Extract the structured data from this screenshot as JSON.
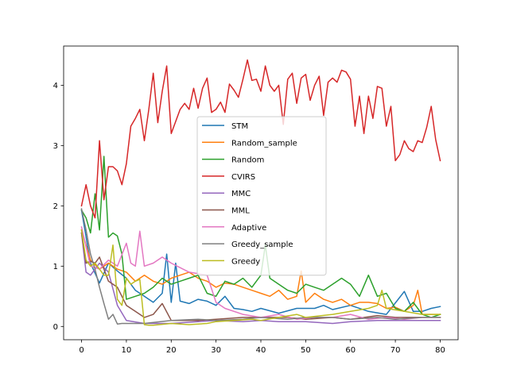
{
  "chart_data": {
    "type": "line",
    "title": "",
    "xlabel": "",
    "ylabel": "",
    "xlim": [
      -4,
      84
    ],
    "ylim": [
      -0.22,
      4.65
    ],
    "xticks": [
      0,
      10,
      20,
      30,
      40,
      50,
      60,
      70,
      80
    ],
    "yticks": [
      0,
      1,
      2,
      3,
      4
    ],
    "grid": false,
    "legend_position": "center",
    "series": [
      {
        "name": "STM",
        "color": "#1f77b4",
        "x": [
          0,
          2,
          4,
          6,
          8,
          10,
          12,
          14,
          16,
          18,
          19,
          20,
          21,
          22,
          24,
          26,
          28,
          30,
          32,
          34,
          36,
          38,
          40,
          44,
          48,
          52,
          54,
          56,
          60,
          64,
          68,
          72,
          74,
          76,
          78,
          80
        ],
        "y": [
          1.93,
          1.05,
          0.72,
          1.05,
          0.92,
          0.8,
          0.6,
          0.5,
          0.4,
          0.55,
          1.2,
          0.4,
          1.05,
          0.42,
          0.38,
          0.45,
          0.42,
          0.35,
          0.5,
          0.3,
          0.28,
          0.25,
          0.3,
          0.22,
          0.3,
          0.3,
          0.35,
          0.28,
          0.35,
          0.25,
          0.2,
          0.58,
          0.25,
          0.25,
          0.3,
          0.33
        ]
      },
      {
        "name": "Random_sample",
        "color": "#ff7f0e",
        "x": [
          0,
          2,
          4,
          6,
          8,
          10,
          12,
          14,
          16,
          18,
          20,
          22,
          24,
          26,
          28,
          30,
          32,
          34,
          36,
          38,
          40,
          42,
          44,
          46,
          48,
          49,
          50,
          52,
          54,
          56,
          58,
          60,
          62,
          64,
          66,
          68,
          70,
          72,
          74,
          75,
          76,
          78,
          80
        ],
        "y": [
          1.6,
          1.1,
          0.95,
          1.05,
          0.95,
          0.9,
          0.75,
          0.85,
          0.75,
          0.7,
          0.8,
          0.85,
          0.9,
          0.8,
          0.75,
          0.65,
          0.72,
          0.7,
          0.65,
          0.6,
          0.55,
          0.5,
          0.6,
          0.45,
          0.5,
          0.92,
          0.4,
          0.55,
          0.45,
          0.4,
          0.45,
          0.35,
          0.4,
          0.4,
          0.38,
          0.3,
          0.32,
          0.25,
          0.35,
          0.6,
          0.2,
          0.2,
          0.2
        ]
      },
      {
        "name": "Random",
        "color": "#2ca02c",
        "x": [
          0,
          1,
          2,
          3,
          4,
          5,
          6,
          7,
          8,
          9,
          10,
          12,
          14,
          16,
          18,
          20,
          22,
          24,
          26,
          28,
          30,
          32,
          34,
          36,
          38,
          40,
          41,
          42,
          44,
          46,
          48,
          50,
          52,
          54,
          56,
          58,
          60,
          62,
          64,
          66,
          68,
          70,
          72,
          74,
          76,
          78,
          80
        ],
        "y": [
          1.93,
          1.8,
          1.55,
          2.2,
          1.6,
          2.82,
          1.48,
          1.55,
          1.5,
          1.2,
          0.45,
          0.5,
          0.55,
          0.65,
          0.8,
          0.7,
          0.75,
          0.8,
          0.85,
          0.55,
          0.5,
          0.75,
          0.7,
          0.8,
          0.65,
          0.85,
          1.35,
          0.8,
          0.7,
          0.6,
          0.55,
          0.7,
          0.65,
          0.6,
          0.7,
          0.8,
          0.7,
          0.5,
          0.85,
          0.5,
          0.55,
          0.3,
          0.25,
          0.4,
          0.2,
          0.15,
          0.2
        ]
      },
      {
        "name": "CVIRS",
        "color": "#d62728",
        "x": [
          0,
          1,
          2,
          3,
          4,
          5,
          6,
          7,
          8,
          9,
          10,
          11,
          12,
          13,
          14,
          15,
          16,
          17,
          18,
          19,
          20,
          21,
          22,
          23,
          24,
          25,
          26,
          27,
          28,
          29,
          30,
          31,
          32,
          33,
          34,
          35,
          36,
          37,
          38,
          39,
          40,
          41,
          42,
          43,
          44,
          45,
          46,
          47,
          48,
          49,
          50,
          51,
          52,
          53,
          54,
          55,
          56,
          57,
          58,
          59,
          60,
          61,
          62,
          63,
          64,
          65,
          66,
          67,
          68,
          69,
          70,
          71,
          72,
          73,
          74,
          75,
          76,
          77,
          78,
          79,
          80
        ],
        "y": [
          2.0,
          2.35,
          2.0,
          1.8,
          3.08,
          2.1,
          2.65,
          2.65,
          2.58,
          2.35,
          2.7,
          3.32,
          3.45,
          3.6,
          3.08,
          3.6,
          4.2,
          3.38,
          3.9,
          4.32,
          3.2,
          3.4,
          3.6,
          3.7,
          3.6,
          3.95,
          3.62,
          3.95,
          4.12,
          3.55,
          3.6,
          3.72,
          3.55,
          4.02,
          3.92,
          3.8,
          4.1,
          4.42,
          4.08,
          4.1,
          3.9,
          4.32,
          4.0,
          3.9,
          4.0,
          3.35,
          4.1,
          4.2,
          3.7,
          4.12,
          4.18,
          3.75,
          4.0,
          4.15,
          3.5,
          4.05,
          4.12,
          4.05,
          4.25,
          4.22,
          4.1,
          3.32,
          3.82,
          3.2,
          3.82,
          3.45,
          3.98,
          3.95,
          3.32,
          3.65,
          2.75,
          2.85,
          3.08,
          2.95,
          2.9,
          3.08,
          3.05,
          3.3,
          3.65,
          3.1,
          2.75
        ]
      },
      {
        "name": "MMC",
        "color": "#9467bd",
        "x": [
          0,
          1,
          2,
          4,
          6,
          8,
          10,
          14,
          20,
          26,
          30,
          36,
          40,
          44,
          50,
          56,
          60,
          66,
          70,
          74,
          80
        ],
        "y": [
          1.55,
          0.9,
          0.85,
          1.05,
          0.9,
          0.35,
          0.1,
          0.05,
          0.05,
          0.08,
          0.1,
          0.08,
          0.1,
          0.08,
          0.08,
          0.05,
          0.08,
          0.1,
          0.1,
          0.1,
          0.1
        ]
      },
      {
        "name": "MML",
        "color": "#8c564b",
        "x": [
          0,
          1,
          2,
          3,
          4,
          5,
          6,
          8,
          10,
          12,
          14,
          16,
          18,
          20,
          26,
          30,
          36,
          40,
          46,
          50,
          56,
          60,
          66,
          70,
          76,
          80
        ],
        "y": [
          1.55,
          1.05,
          1.08,
          1.05,
          1.15,
          0.95,
          0.75,
          0.65,
          0.35,
          0.25,
          0.15,
          0.2,
          0.38,
          0.1,
          0.1,
          0.12,
          0.15,
          0.15,
          0.15,
          0.12,
          0.15,
          0.12,
          0.18,
          0.15,
          0.15,
          0.15
        ]
      },
      {
        "name": "Adaptive",
        "color": "#e377c2",
        "x": [
          0,
          2,
          4,
          6,
          8,
          10,
          11,
          12,
          13,
          14,
          16,
          18,
          20,
          24,
          28,
          30,
          32,
          36,
          40,
          44,
          48,
          52,
          56,
          60,
          64,
          68,
          72,
          76,
          80
        ],
        "y": [
          1.65,
          1.0,
          0.95,
          1.1,
          1.0,
          1.38,
          1.05,
          1.0,
          1.58,
          1.0,
          1.05,
          1.15,
          1.05,
          0.9,
          0.85,
          0.4,
          0.3,
          0.2,
          0.15,
          0.2,
          0.12,
          0.15,
          0.15,
          0.2,
          0.12,
          0.15,
          0.12,
          0.15,
          0.15
        ]
      },
      {
        "name": "Greedy_sample",
        "color": "#7f7f7f",
        "x": [
          0,
          1,
          2,
          3,
          4,
          5,
          6,
          7,
          8,
          9,
          10,
          14,
          20,
          26,
          30,
          36,
          40,
          46,
          50,
          56,
          60,
          66,
          70,
          76,
          80
        ],
        "y": [
          1.95,
          1.6,
          1.2,
          0.95,
          0.65,
          0.38,
          0.12,
          0.2,
          0.04,
          0.05,
          0.05,
          0.05,
          0.1,
          0.12,
          0.1,
          0.12,
          0.15,
          0.12,
          0.15,
          0.15,
          0.12,
          0.15,
          0.12,
          0.15,
          0.15
        ]
      },
      {
        "name": "Greedy",
        "color": "#bcbd22",
        "x": [
          0,
          1,
          2,
          3,
          4,
          5,
          6,
          7,
          8,
          9,
          10,
          11,
          12,
          13,
          14,
          15,
          16,
          20,
          24,
          28,
          30,
          34,
          38,
          40,
          44,
          48,
          50,
          56,
          60,
          64,
          66,
          67,
          68,
          72,
          76,
          80
        ],
        "y": [
          1.6,
          1.1,
          1.0,
          1.05,
          0.95,
          0.85,
          0.85,
          1.35,
          0.45,
          0.35,
          0.8,
          0.7,
          0.75,
          0.78,
          0.03,
          0.02,
          0.02,
          0.05,
          0.03,
          0.05,
          0.08,
          0.1,
          0.12,
          0.1,
          0.15,
          0.2,
          0.15,
          0.2,
          0.25,
          0.3,
          0.35,
          0.6,
          0.3,
          0.25,
          0.2,
          0.2
        ]
      }
    ]
  }
}
